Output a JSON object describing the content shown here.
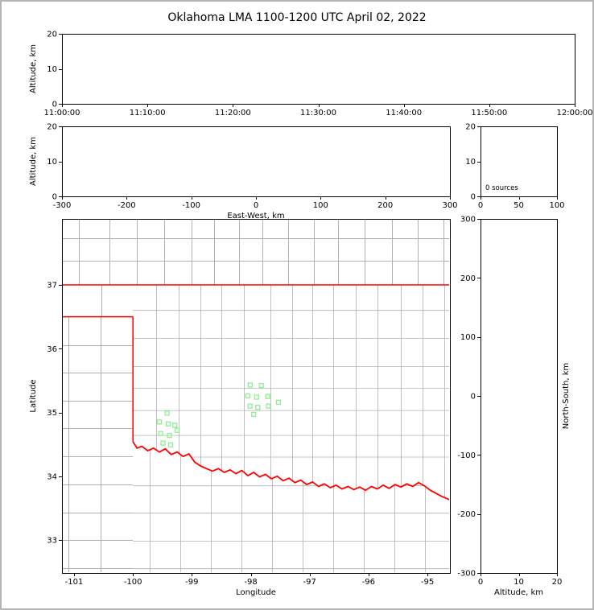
{
  "title": "Oklahoma LMA 1100-1200 UTC April 02, 2022",
  "colors": {
    "state_border": "#ff0000",
    "county_border": "#b0b0b0",
    "source_marker": "#90ee90",
    "axis": "#000000",
    "background": "#ffffff",
    "frame": "#b5b5b5"
  },
  "chart_data": [
    {
      "id": "time_height",
      "type": "scatter",
      "xlabel": "",
      "ylabel": "Altitude, km",
      "xtick_labels": [
        "11:00:00",
        "11:10:00",
        "11:20:00",
        "11:30:00",
        "11:40:00",
        "11:50:00",
        "12:00:00"
      ],
      "ylim": [
        0,
        20
      ],
      "yticks": [
        0,
        10,
        20
      ],
      "points": []
    },
    {
      "id": "ew_height",
      "type": "scatter",
      "xlabel": "East-West, km",
      "ylabel": "Altitude, km",
      "xlim": [
        -300,
        300
      ],
      "xticks": [
        -300,
        -200,
        -100,
        0,
        100,
        200,
        300
      ],
      "ylim": [
        0,
        20
      ],
      "yticks": [
        0,
        10,
        20
      ],
      "points": []
    },
    {
      "id": "alt_histogram",
      "type": "line",
      "xlabel": "",
      "ylabel": "",
      "xlim": [
        0,
        100
      ],
      "xticks": [
        0,
        50,
        100
      ],
      "ylim": [
        0,
        20
      ],
      "yticks": [
        0,
        10,
        20
      ],
      "annotation": "0 sources",
      "points": []
    },
    {
      "id": "plan_view",
      "type": "scatter",
      "xlabel": "Longitude",
      "ylabel": "Latitude",
      "xlim": [
        -101.205,
        -94.618
      ],
      "xticks": [
        -101,
        -100,
        -99,
        -98,
        -97,
        -96,
        -95
      ],
      "ylim": [
        32.483,
        38.035
      ],
      "yticks": [
        33,
        34,
        35,
        36,
        37
      ],
      "points": [
        [
          -98.01,
          35.43
        ],
        [
          -97.82,
          35.42
        ],
        [
          -98.05,
          35.26
        ],
        [
          -97.9,
          35.24
        ],
        [
          -97.71,
          35.25
        ],
        [
          -98.01,
          35.1
        ],
        [
          -97.88,
          35.08
        ],
        [
          -97.7,
          35.1
        ],
        [
          -97.95,
          34.97
        ],
        [
          -97.53,
          35.16
        ],
        [
          -99.42,
          34.99
        ],
        [
          -99.55,
          34.85
        ],
        [
          -99.4,
          34.82
        ],
        [
          -99.29,
          34.8
        ],
        [
          -99.53,
          34.67
        ],
        [
          -99.38,
          34.64
        ],
        [
          -99.25,
          34.72
        ],
        [
          -99.49,
          34.52
        ],
        [
          -99.36,
          34.49
        ]
      ]
    },
    {
      "id": "ns_height",
      "type": "scatter",
      "xlabel": "Altitude, km",
      "ylabel": "North-South, km",
      "xlim": [
        0,
        20
      ],
      "xticks": [
        0,
        10,
        20
      ],
      "ylim": [
        -300,
        300
      ],
      "yticks": [
        -300,
        -200,
        -100,
        0,
        100,
        200,
        300
      ],
      "points": []
    }
  ],
  "map": {
    "river": [
      [
        -100.0,
        34.54
      ],
      [
        -99.93,
        34.44
      ],
      [
        -99.85,
        34.47
      ],
      [
        -99.75,
        34.4
      ],
      [
        -99.65,
        34.44
      ],
      [
        -99.55,
        34.38
      ],
      [
        -99.45,
        34.43
      ],
      [
        -99.35,
        34.34
      ],
      [
        -99.25,
        34.38
      ],
      [
        -99.15,
        34.31
      ],
      [
        -99.05,
        34.35
      ],
      [
        -98.95,
        34.22
      ],
      [
        -98.85,
        34.16
      ],
      [
        -98.75,
        34.12
      ],
      [
        -98.65,
        34.08
      ],
      [
        -98.55,
        34.12
      ],
      [
        -98.45,
        34.06
      ],
      [
        -98.35,
        34.1
      ],
      [
        -98.25,
        34.04
      ],
      [
        -98.15,
        34.09
      ],
      [
        -98.05,
        34.01
      ],
      [
        -97.95,
        34.06
      ],
      [
        -97.85,
        33.99
      ],
      [
        -97.75,
        34.03
      ],
      [
        -97.65,
        33.96
      ],
      [
        -97.55,
        34.0
      ],
      [
        -97.45,
        33.93
      ],
      [
        -97.35,
        33.97
      ],
      [
        -97.25,
        33.9
      ],
      [
        -97.15,
        33.94
      ],
      [
        -97.05,
        33.87
      ],
      [
        -96.95,
        33.91
      ],
      [
        -96.85,
        33.84
      ],
      [
        -96.75,
        33.88
      ],
      [
        -96.65,
        33.82
      ],
      [
        -96.55,
        33.86
      ],
      [
        -96.45,
        33.8
      ],
      [
        -96.35,
        33.84
      ],
      [
        -96.25,
        33.79
      ],
      [
        -96.15,
        33.83
      ],
      [
        -96.05,
        33.78
      ],
      [
        -95.95,
        33.84
      ],
      [
        -95.85,
        33.8
      ],
      [
        -95.75,
        33.86
      ],
      [
        -95.65,
        33.81
      ],
      [
        -95.55,
        33.87
      ],
      [
        -95.45,
        33.83
      ],
      [
        -95.35,
        33.88
      ],
      [
        -95.25,
        33.84
      ],
      [
        -95.15,
        33.9
      ],
      [
        -95.05,
        33.85
      ],
      [
        -94.95,
        33.78
      ],
      [
        -94.85,
        33.73
      ],
      [
        -94.75,
        33.68
      ],
      [
        -94.618,
        33.63
      ]
    ],
    "state_lines": [
      [
        [
          -101.205,
          37
        ],
        [
          -94.618,
          37
        ]
      ],
      [
        [
          -101.205,
          36.5
        ],
        [
          -100,
          36.5
        ]
      ],
      [
        [
          -100,
          36.5
        ],
        [
          -100,
          34.54
        ]
      ],
      [
        [
          -94.618,
          37
        ],
        [
          -94.618,
          36.5
        ]
      ]
    ],
    "county_regions": [
      {
        "name": "kansas",
        "lon": [
          -101.205,
          -94.618
        ],
        "lat": [
          37,
          38.035
        ],
        "v": [
          -100.92,
          -100.4,
          -99.93,
          -99.47,
          -99.0,
          -98.62,
          -98.2,
          -97.8,
          -97.37,
          -96.93,
          -96.52,
          -96.07,
          -95.6,
          -95.17,
          -94.73
        ],
        "h": [
          37.383,
          37.736
        ]
      },
      {
        "name": "ok-panhandle",
        "lon": [
          -101.205,
          -100
        ],
        "lat": [
          36.5,
          37
        ],
        "v": [
          -100.54
        ],
        "h": []
      },
      {
        "name": "texas-panhandle",
        "lon": [
          -101.205,
          -100
        ],
        "lat": [
          32.483,
          36.5
        ],
        "v": [
          -101.09,
          -100.55
        ],
        "h": [
          36.06,
          35.62,
          35.18,
          34.748,
          34.312,
          33.874,
          33.434,
          32.996,
          32.558
        ]
      },
      {
        "name": "oklahoma",
        "lon": [
          -100,
          -94.618
        ],
        "lat": [
          "river",
          37
        ],
        "v": [
          -99.6,
          -99.22,
          -98.85,
          -98.5,
          -98.12,
          -97.66,
          -97.3,
          -96.95,
          -96.6,
          -96.22,
          -95.85,
          -95.45,
          -95.08,
          -94.72
        ],
        "h": [
          36.6,
          36.16,
          35.72,
          35.38,
          35.03,
          34.64,
          34.3
        ]
      },
      {
        "name": "texas-south",
        "lon": [
          -100,
          -94.618
        ],
        "lat": [
          32.483,
          "river"
        ],
        "v": [
          -99.72,
          -99.2,
          -98.68,
          -98.16,
          -97.64,
          -97.12,
          -96.6,
          -96.08,
          -95.56,
          -95.04
        ],
        "h": [
          33.85,
          33.42,
          32.98,
          32.55
        ]
      }
    ]
  }
}
